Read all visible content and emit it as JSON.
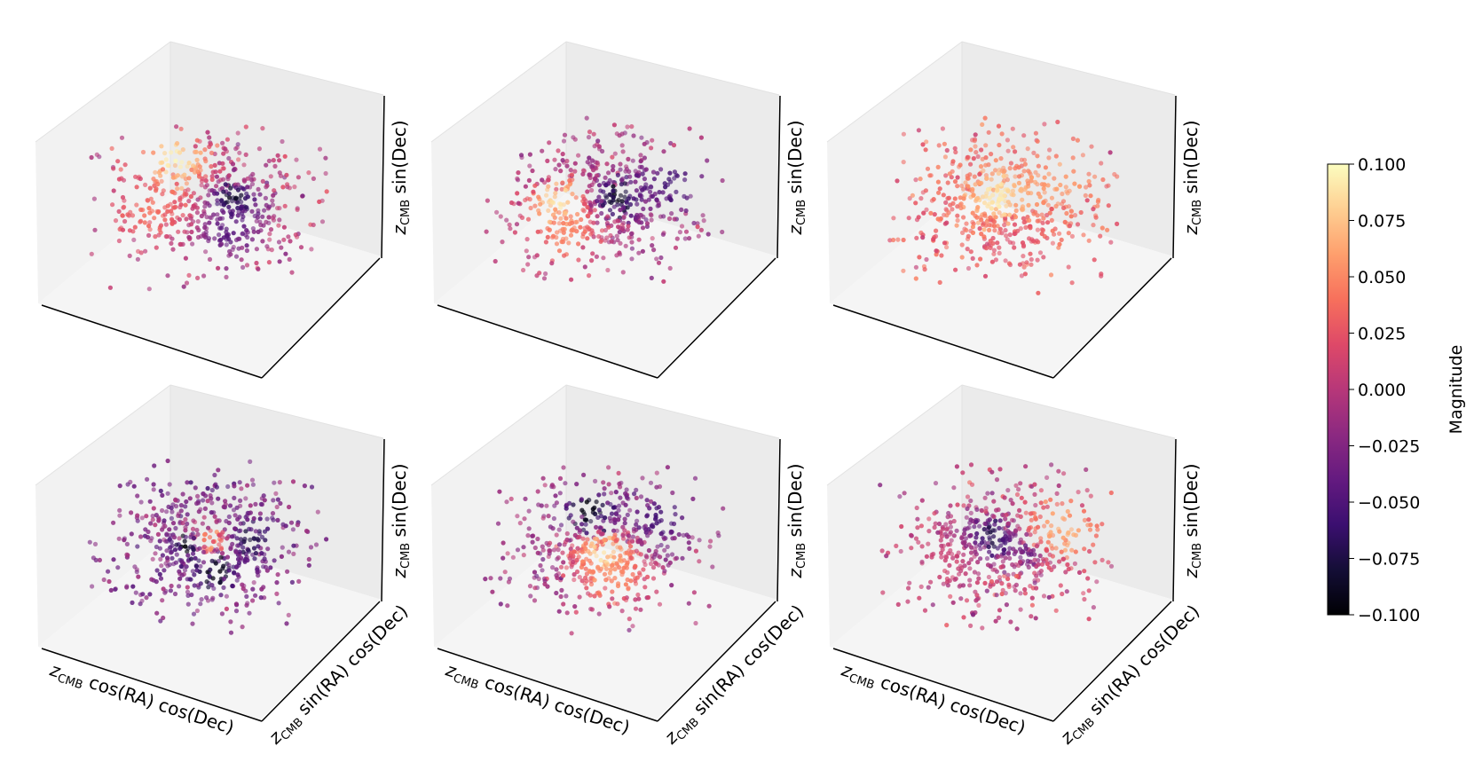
{
  "figure": {
    "colormap": "magma",
    "marker_alpha": 0.7
  },
  "labels": {
    "x": "cos(RA) cos(Dec)",
    "y": "sin(RA) cos(Dec)",
    "z": "sin(Dec)",
    "z_symbol": "z",
    "z_subscript": "CMB"
  },
  "chart_data": {
    "type": "scatter",
    "subtype": "3d-scatter-grid",
    "rows": 2,
    "cols": 3,
    "n_points_per_panel": 560,
    "color_range": [
      -0.1,
      0.1
    ],
    "panels": [
      {
        "id": 1,
        "row": 1,
        "col": 1,
        "show_xy_labels": false,
        "base_value": 0.0,
        "features": [
          {
            "u": -0.3,
            "v": 0.5,
            "value": 0.1,
            "width": 0.3
          },
          {
            "u": 0.2,
            "v": 0.05,
            "value": -0.1,
            "width": 0.2
          },
          {
            "u": 0.15,
            "v": -0.35,
            "value": -0.05,
            "width": 0.3
          },
          {
            "u": -0.5,
            "v": -0.1,
            "value": 0.04,
            "width": 0.35
          }
        ]
      },
      {
        "id": 2,
        "row": 1,
        "col": 2,
        "show_xy_labels": false,
        "base_value": -0.005,
        "features": [
          {
            "u": -0.4,
            "v": 0.0,
            "value": 0.1,
            "width": 0.25
          },
          {
            "u": 0.1,
            "v": 0.05,
            "value": -0.1,
            "width": 0.2
          },
          {
            "u": 0.6,
            "v": 0.25,
            "value": -0.06,
            "width": 0.35
          },
          {
            "u": -0.35,
            "v": -0.4,
            "value": 0.05,
            "width": 0.3
          }
        ]
      },
      {
        "id": 3,
        "row": 1,
        "col": 3,
        "show_xy_labels": false,
        "base_value": 0.03,
        "features": [
          {
            "u": 0.0,
            "v": 0.05,
            "value": 0.1,
            "width": 0.3
          },
          {
            "u": 0.5,
            "v": 0.25,
            "value": 0.06,
            "width": 0.35
          },
          {
            "u": 0.1,
            "v": -0.45,
            "value": 0.02,
            "width": 0.3
          }
        ]
      },
      {
        "id": 4,
        "row": 2,
        "col": 1,
        "show_xy_labels": true,
        "base_value": -0.025,
        "features": [
          {
            "u": 0.0,
            "v": 0.05,
            "value": 0.1,
            "width": 0.2
          },
          {
            "u": -0.2,
            "v": 0.0,
            "value": -0.1,
            "width": 0.15
          },
          {
            "u": 0.05,
            "v": -0.3,
            "value": -0.1,
            "width": 0.2
          },
          {
            "u": 0.35,
            "v": 0.1,
            "value": -0.08,
            "width": 0.2
          }
        ]
      },
      {
        "id": 5,
        "row": 2,
        "col": 2,
        "show_xy_labels": true,
        "base_value": -0.01,
        "features": [
          {
            "u": -0.15,
            "v": 0.45,
            "value": -0.1,
            "width": 0.25
          },
          {
            "u": 0.0,
            "v": -0.1,
            "value": 0.1,
            "width": 0.25
          },
          {
            "u": 0.1,
            "v": -0.45,
            "value": 0.05,
            "width": 0.3
          },
          {
            "u": 0.5,
            "v": 0.35,
            "value": -0.06,
            "width": 0.3
          }
        ]
      },
      {
        "id": 6,
        "row": 2,
        "col": 3,
        "show_xy_labels": true,
        "base_value": 0.005,
        "features": [
          {
            "u": -0.1,
            "v": 0.1,
            "value": -0.1,
            "width": 0.25
          },
          {
            "u": 0.25,
            "v": -0.05,
            "value": -0.08,
            "width": 0.15
          },
          {
            "u": 0.55,
            "v": 0.2,
            "value": 0.07,
            "width": 0.35
          },
          {
            "u": -0.5,
            "v": -0.1,
            "value": 0.01,
            "width": 0.35
          }
        ]
      }
    ],
    "colorbar": {
      "label": "Magnitude",
      "vmin": -0.1,
      "vmax": 0.1,
      "ticks": [
        0.1,
        0.075,
        0.05,
        0.025,
        0.0,
        -0.025,
        -0.05,
        -0.075,
        -0.1
      ],
      "tick_labels": [
        "0.100",
        "0.075",
        "0.050",
        "0.025",
        "0.000",
        "−0.025",
        "−0.050",
        "−0.075",
        "−0.100"
      ]
    }
  }
}
